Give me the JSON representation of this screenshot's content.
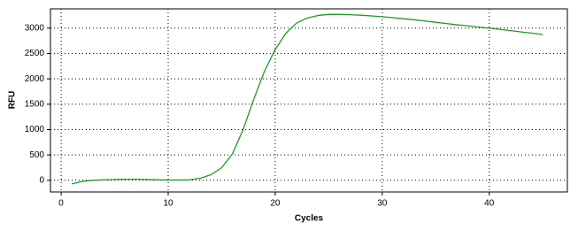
{
  "chart_data": {
    "type": "line",
    "x_label": "Cycles",
    "y_label": "RFU",
    "x": [
      1,
      2,
      3,
      4,
      5,
      6,
      7,
      8,
      9,
      10,
      11,
      12,
      13,
      14,
      15,
      16,
      17,
      18,
      19,
      20,
      21,
      22,
      23,
      24,
      25,
      26,
      27,
      28,
      29,
      30,
      31,
      32,
      33,
      34,
      35,
      36,
      37,
      38,
      39,
      40,
      41,
      42,
      43,
      44,
      45
    ],
    "series": [
      {
        "color": "#1f9a1f",
        "values": [
          -70,
          -20,
          0,
          10,
          15,
          20,
          20,
          15,
          10,
          5,
          5,
          10,
          40,
          110,
          250,
          520,
          1000,
          1600,
          2150,
          2580,
          2900,
          3100,
          3200,
          3250,
          3270,
          3270,
          3265,
          3255,
          3240,
          3225,
          3205,
          3185,
          3165,
          3140,
          3115,
          3090,
          3065,
          3045,
          3020,
          3000,
          2975,
          2950,
          2925,
          2900,
          2875
        ]
      }
    ],
    "xlim": [
      -1,
      47.3
    ],
    "ylim": [
      -230,
      3380
    ],
    "xticks": [
      0,
      10,
      20,
      30,
      40
    ],
    "yticks": [
      0,
      500,
      1000,
      1500,
      2000,
      2500,
      3000
    ],
    "grid": true
  }
}
